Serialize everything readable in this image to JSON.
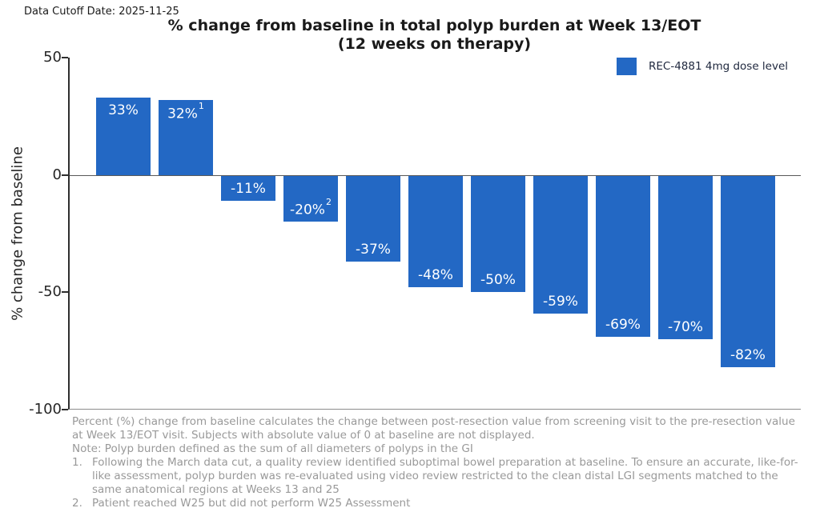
{
  "header": {
    "data_cutoff": "Data Cutoff Date: 2025-11-25",
    "title_line1": "% change from baseline in total polyp burden at Week 13/EOT",
    "title_line2": "(12 weeks on therapy)"
  },
  "legend": {
    "label": "REC-4881 4mg dose level",
    "color": "#2368c4"
  },
  "chart_data": {
    "type": "bar",
    "title": "% change from baseline in total polyp burden at Week 13/EOT (12 weeks on therapy)",
    "ylabel": "% change from baseline",
    "xlabel": "",
    "ylim": [
      -100,
      50
    ],
    "yticks": [
      50,
      0,
      -50,
      -100
    ],
    "grid": false,
    "legend_position": "top-right",
    "bar_color": "#2368c4",
    "series": [
      {
        "name": "REC-4881 4mg dose level",
        "values": [
          33,
          32,
          -11,
          -20,
          -37,
          -48,
          -50,
          -59,
          -69,
          -70,
          -82
        ]
      }
    ],
    "bar_labels": [
      "33%",
      "32%",
      "-11%",
      "-20%",
      "-37%",
      "-48%",
      "-50%",
      "-59%",
      "-69%",
      "-70%",
      "-82%"
    ],
    "bar_label_superscripts": [
      "",
      "1",
      "",
      "2",
      "",
      "",
      "",
      "",
      "",
      "",
      ""
    ]
  },
  "footnotes": {
    "para1": "Percent (%) change from baseline calculates the change between post-resection value from screening visit to the pre-resection value at Week 13/EOT visit. Subjects with absolute value of 0 at baseline are not displayed.",
    "note": "Note: Polyp burden defined as the sum of all diameters of polyps in the GI",
    "items": [
      {
        "num": "1.",
        "text": "Following the March data cut, a quality review identified suboptimal bowel preparation at baseline. To ensure an accurate, like-for-like assessment, polyp burden was re-evaluated using video review restricted to the clean distal LGI segments matched to the same anatomical regions at Weeks 13 and 25"
      },
      {
        "num": "2.",
        "text": "Patient reached W25 but did not perform W25 Assessment"
      }
    ]
  }
}
